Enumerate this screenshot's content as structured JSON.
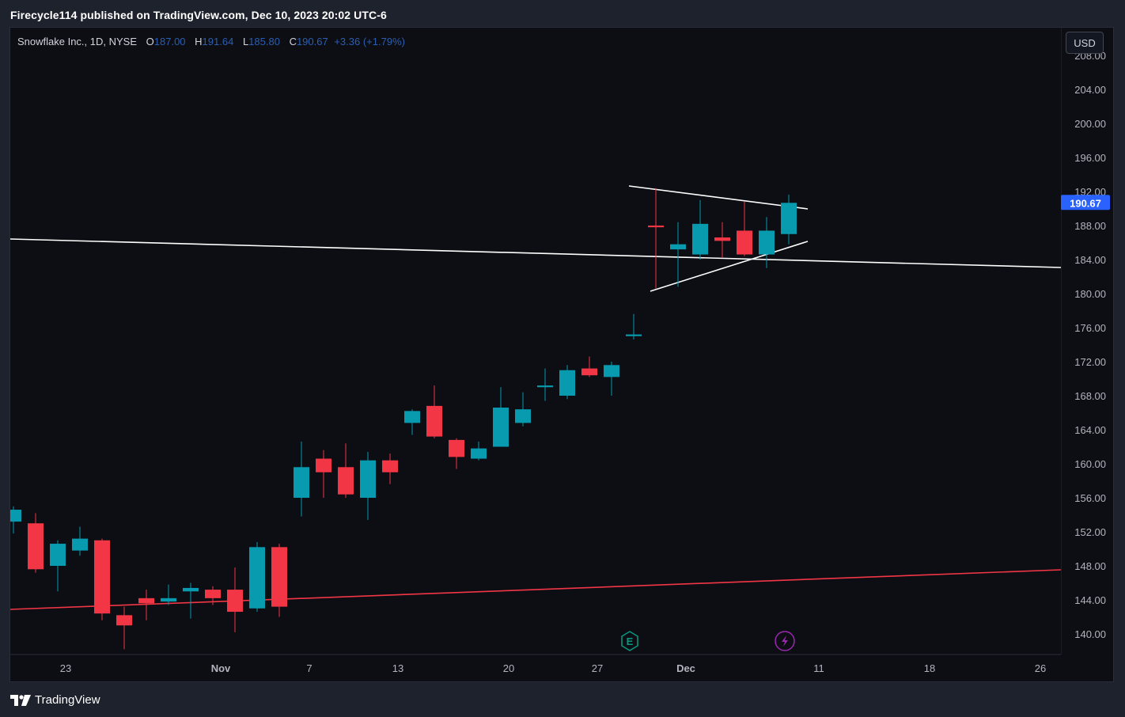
{
  "header": {
    "publish_line": "Firecycle114 published on TradingView.com, Dec 10, 2023 20:02 UTC-6"
  },
  "legend": {
    "symbol": "Snowflake Inc., 1D, NYSE",
    "open_label": "O",
    "open": "187.00",
    "high_label": "H",
    "high": "191.64",
    "low_label": "L",
    "low": "185.80",
    "close_label": "C",
    "close": "190.67",
    "change": "+3.36 (+1.79%)"
  },
  "currency_button": "USD",
  "footer": {
    "brand": "TradingView"
  },
  "colors": {
    "up": "#089bb0",
    "down": "#f23645",
    "price_badge": "#2962ff",
    "red_line": "#f23645",
    "white_line": "#ffffff"
  },
  "chart_data": {
    "type": "candlestick",
    "y_ticks": [
      "140.00",
      "144.00",
      "148.00",
      "152.00",
      "156.00",
      "160.00",
      "164.00",
      "168.00",
      "172.00",
      "176.00",
      "180.00",
      "184.00",
      "188.00",
      "192.00",
      "196.00",
      "200.00",
      "204.00",
      "208.00"
    ],
    "x_ticks": [
      {
        "label": "23",
        "index": 2
      },
      {
        "label": "Nov",
        "index": 9
      },
      {
        "label": "7",
        "index": 13
      },
      {
        "label": "13",
        "index": 17
      },
      {
        "label": "20",
        "index": 22
      },
      {
        "label": "27",
        "index": 26
      },
      {
        "label": "Dec",
        "index": 30
      },
      {
        "label": "11",
        "index": 36
      },
      {
        "label": "18",
        "index": 41
      },
      {
        "label": "26",
        "index": 46
      }
    ],
    "ylim": [
      137.6,
      208.6
    ],
    "last_price": "190.67",
    "candles": [
      {
        "i": 0,
        "o": 153.2,
        "h": 155.0,
        "l": 151.8,
        "c": 154.6
      },
      {
        "i": 1,
        "o": 153.0,
        "h": 154.2,
        "l": 147.2,
        "c": 147.6
      },
      {
        "i": 2,
        "o": 148.0,
        "h": 151.0,
        "l": 145.0,
        "c": 150.6
      },
      {
        "i": 3,
        "o": 149.8,
        "h": 152.6,
        "l": 149.2,
        "c": 151.2
      },
      {
        "i": 4,
        "o": 151.0,
        "h": 151.2,
        "l": 141.6,
        "c": 142.4
      },
      {
        "i": 5,
        "o": 142.2,
        "h": 143.2,
        "l": 138.2,
        "c": 141.0
      },
      {
        "i": 6,
        "o": 144.2,
        "h": 145.2,
        "l": 141.6,
        "c": 143.6
      },
      {
        "i": 7,
        "o": 143.8,
        "h": 145.8,
        "l": 143.4,
        "c": 144.2
      },
      {
        "i": 8,
        "o": 145.0,
        "h": 146.0,
        "l": 141.8,
        "c": 145.4
      },
      {
        "i": 9,
        "o": 145.2,
        "h": 145.6,
        "l": 143.4,
        "c": 144.2
      },
      {
        "i": 10,
        "o": 145.2,
        "h": 147.8,
        "l": 140.2,
        "c": 142.6
      },
      {
        "i": 11,
        "o": 143.0,
        "h": 150.8,
        "l": 142.6,
        "c": 150.2
      },
      {
        "i": 12,
        "o": 150.2,
        "h": 150.6,
        "l": 142.0,
        "c": 143.2
      },
      {
        "i": 13,
        "o": 156.0,
        "h": 162.6,
        "l": 153.8,
        "c": 159.6
      },
      {
        "i": 14,
        "o": 160.6,
        "h": 161.6,
        "l": 156.0,
        "c": 159.0
      },
      {
        "i": 15,
        "o": 159.6,
        "h": 162.4,
        "l": 156.0,
        "c": 156.4
      },
      {
        "i": 16,
        "o": 156.0,
        "h": 161.4,
        "l": 153.4,
        "c": 160.4
      },
      {
        "i": 17,
        "o": 160.4,
        "h": 161.2,
        "l": 157.6,
        "c": 159.0
      },
      {
        "i": 18,
        "o": 164.8,
        "h": 166.4,
        "l": 163.4,
        "c": 166.2
      },
      {
        "i": 19,
        "o": 166.8,
        "h": 169.2,
        "l": 163.0,
        "c": 163.2
      },
      {
        "i": 20,
        "o": 162.8,
        "h": 163.0,
        "l": 159.4,
        "c": 160.8
      },
      {
        "i": 21,
        "o": 160.6,
        "h": 162.6,
        "l": 160.4,
        "c": 161.8
      },
      {
        "i": 22,
        "o": 162.0,
        "h": 169.0,
        "l": 162.0,
        "c": 166.6
      },
      {
        "i": 23,
        "o": 164.8,
        "h": 168.4,
        "l": 164.4,
        "c": 166.4
      },
      {
        "i": 24,
        "o": 169.0,
        "h": 171.2,
        "l": 167.4,
        "c": 169.2
      },
      {
        "i": 25,
        "o": 168.0,
        "h": 171.6,
        "l": 167.6,
        "c": 171.0
      },
      {
        "i": 26,
        "o": 171.2,
        "h": 172.6,
        "l": 170.2,
        "c": 170.4
      },
      {
        "i": 27,
        "o": 170.2,
        "h": 172.0,
        "l": 168.0,
        "c": 171.6
      },
      {
        "i": 28,
        "o": 175.0,
        "h": 177.6,
        "l": 174.6,
        "c": 175.2
      },
      {
        "i": 29,
        "o": 188.0,
        "h": 192.4,
        "l": 180.6,
        "c": 187.8
      },
      {
        "i": 30,
        "o": 185.2,
        "h": 188.4,
        "l": 180.8,
        "c": 185.8
      },
      {
        "i": 31,
        "o": 184.6,
        "h": 191.0,
        "l": 184.0,
        "c": 188.2
      },
      {
        "i": 32,
        "o": 186.6,
        "h": 188.4,
        "l": 184.2,
        "c": 186.2
      },
      {
        "i": 33,
        "o": 187.4,
        "h": 190.8,
        "l": 184.4,
        "c": 184.6
      },
      {
        "i": 34,
        "o": 184.6,
        "h": 189.0,
        "l": 183.0,
        "c": 187.4
      },
      {
        "i": 35,
        "o": 187.0,
        "h": 191.64,
        "l": 185.8,
        "c": 190.67
      }
    ]
  }
}
